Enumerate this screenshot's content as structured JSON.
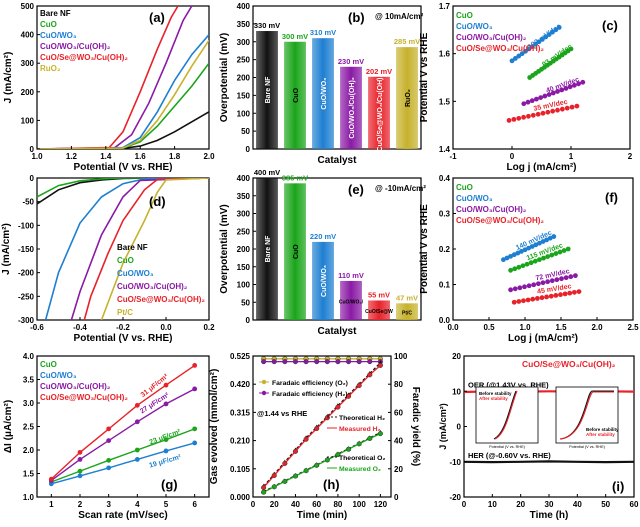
{
  "figure": "electrochemical performance multi-panel",
  "colors": {
    "bare": "#111111",
    "cuo": "#1aa51a",
    "cuowo3": "#1e7fd1",
    "cuowo3cuoh": "#8a1aa5",
    "cse": "#e8222a",
    "ruo2": "#c6b22c",
    "pt": "#c6b22c",
    "text": "#000000"
  },
  "chart_data": [
    {
      "id": "a",
      "type": "line",
      "panel_label": "(a)",
      "xlabel": "Potential (V vs. RHE)",
      "ylabel": "J (mA/cm²)",
      "xlim": [
        1.0,
        2.0
      ],
      "ylim": [
        0,
        500
      ],
      "xticks": [
        "1.0",
        "1.2",
        "1.4",
        "1.6",
        "1.8",
        "2.0"
      ],
      "yticks": [
        "0",
        "100",
        "200",
        "300",
        "400",
        "500"
      ],
      "legend": [
        "Bare NF",
        "CuO",
        "CuO/WO₃",
        "CuO/WO₃/Cu(OH)₂",
        "CuO/Se@WO₃/Cu(OH)₂",
        "RuO₂"
      ],
      "series": [
        {
          "name": "Bare NF",
          "color": "#111111",
          "x": [
            1.0,
            1.5,
            1.6,
            1.7,
            1.8,
            1.9,
            2.0
          ],
          "y": [
            0,
            2,
            10,
            30,
            60,
            95,
            130
          ]
        },
        {
          "name": "CuO",
          "color": "#1aa51a",
          "x": [
            1.0,
            1.5,
            1.6,
            1.7,
            1.8,
            1.9,
            2.0
          ],
          "y": [
            0,
            3,
            25,
            80,
            150,
            220,
            300
          ]
        },
        {
          "name": "CuO/WO₃",
          "color": "#1e7fd1",
          "x": [
            1.0,
            1.5,
            1.6,
            1.7,
            1.8,
            1.9,
            2.0
          ],
          "y": [
            0,
            5,
            40,
            130,
            240,
            330,
            400
          ]
        },
        {
          "name": "CuO/WO₃/Cu(OH)₂",
          "color": "#8a1aa5",
          "x": [
            1.0,
            1.45,
            1.55,
            1.65,
            1.75,
            1.85,
            1.9
          ],
          "y": [
            0,
            4,
            50,
            160,
            300,
            450,
            500
          ]
        },
        {
          "name": "CuO/Se@WO₃/Cu(OH)₂",
          "color": "#e8222a",
          "x": [
            1.0,
            1.42,
            1.5,
            1.6,
            1.7,
            1.78,
            1.82
          ],
          "y": [
            0,
            5,
            60,
            200,
            350,
            460,
            500
          ]
        },
        {
          "name": "RuO₂",
          "color": "#c6b22c",
          "x": [
            1.0,
            1.5,
            1.6,
            1.7,
            1.8,
            1.9,
            2.0
          ],
          "y": [
            0,
            3,
            30,
            100,
            190,
            290,
            380
          ]
        }
      ]
    },
    {
      "id": "b",
      "type": "bar",
      "panel_label": "(b)",
      "note": "@ 10mA/cm²",
      "xlabel": "Catalyst",
      "ylabel": "Overpotential (mV)",
      "ylim": [
        0,
        400
      ],
      "yticks": [
        "0",
        "50",
        "100",
        "150",
        "200",
        "250",
        "300",
        "350",
        "400"
      ],
      "categories": [
        "Bare NF",
        "CuO",
        "CuO/WO₃",
        "CuO/WO₃/Cu(OH)₂",
        "CuO/Se@WO₃/Cu(OH)₂",
        "RuO₂"
      ],
      "values": [
        330,
        300,
        310,
        230,
        202,
        285
      ],
      "value_labels": [
        "330 mV",
        "300 mV",
        "310 mV",
        "230 mV",
        "202 mV",
        "285 mV"
      ],
      "colors": [
        "#111111",
        "#1aa51a",
        "#1e7fd1",
        "#8a1aa5",
        "#e8222a",
        "#c6b22c"
      ]
    },
    {
      "id": "c",
      "type": "line",
      "panel_label": "(c)",
      "xlabel": "Log j (mA/cm²)",
      "ylabel": "Potential V vs RHE",
      "xlim": [
        -1,
        2
      ],
      "ylim": [
        1.4,
        1.7
      ],
      "xticks": [
        "-1",
        "0",
        "1",
        "2"
      ],
      "yticks": [
        "1.4",
        "1.5",
        "1.6",
        "1.7"
      ],
      "legend": [
        "CuO",
        "CuO/WO₃",
        "CuO/WO₃/Cu(OH)₂",
        "CuO/Se@WO₃/Cu(OH)₂"
      ],
      "series": [
        {
          "name": "CuO",
          "color": "#1aa51a",
          "x": [
            0.3,
            1.0
          ],
          "y": [
            1.55,
            1.61
          ],
          "label": "93 mV/dec"
        },
        {
          "name": "CuO/WO₃",
          "color": "#1e7fd1",
          "x": [
            0.0,
            0.8
          ],
          "y": [
            1.585,
            1.655
          ],
          "label": "102 mV/dec"
        },
        {
          "name": "CuO/WO₃/Cu(OH)₂",
          "color": "#8a1aa5",
          "x": [
            0.2,
            1.2
          ],
          "y": [
            1.495,
            1.54
          ],
          "label": "40 mV/dec"
        },
        {
          "name": "CuO/Se@WO₃/Cu(OH)₂",
          "color": "#e8222a",
          "x": [
            -0.05,
            1.1
          ],
          "y": [
            1.46,
            1.49
          ],
          "label": "35 mV/dec"
        }
      ]
    },
    {
      "id": "d",
      "type": "line",
      "panel_label": "(d)",
      "xlabel": "Potential (V vs. RHE)",
      "ylabel": "J (mA/cm²)",
      "xlim": [
        -0.6,
        0.2
      ],
      "ylim": [
        -300,
        0
      ],
      "xticks": [
        "-0.6",
        "-0.4",
        "-0.2",
        "0.0",
        "0.2"
      ],
      "yticks": [
        "0",
        "-50",
        "-100",
        "-150",
        "-200",
        "-250",
        "-300"
      ],
      "legend": [
        "Bare NF",
        "CuO",
        "CuO/WO₃",
        "CuO/WO₃/Cu(OH)₂",
        "CuO/Se@WO₃/Cu(OH)₂",
        "Pt/C"
      ],
      "series": [
        {
          "name": "Bare NF",
          "color": "#111111",
          "x": [
            -0.6,
            -0.5,
            -0.4,
            -0.3,
            -0.2,
            -0.1,
            0.2
          ],
          "y": [
            -55,
            -25,
            -10,
            -4,
            -1,
            0,
            0
          ]
        },
        {
          "name": "CuO",
          "color": "#1aa51a",
          "x": [
            -0.6,
            -0.5,
            -0.4,
            -0.3,
            -0.2,
            -0.1,
            0.2
          ],
          "y": [
            -40,
            -16,
            -6,
            -2,
            0,
            0,
            0
          ]
        },
        {
          "name": "CuO/WO₃",
          "color": "#1e7fd1",
          "x": [
            -0.56,
            -0.5,
            -0.4,
            -0.3,
            -0.2,
            -0.1,
            0.2
          ],
          "y": [
            -300,
            -200,
            -95,
            -40,
            -12,
            -2,
            0
          ]
        },
        {
          "name": "CuO/WO₃/Cu(OH)₂",
          "color": "#8a1aa5",
          "x": [
            -0.44,
            -0.4,
            -0.3,
            -0.2,
            -0.12,
            0.2
          ],
          "y": [
            -300,
            -240,
            -120,
            -40,
            -5,
            0
          ]
        },
        {
          "name": "CuO/Se@WO₃/Cu(OH)₂",
          "color": "#e8222a",
          "x": [
            -0.38,
            -0.35,
            -0.27,
            -0.2,
            -0.1,
            -0.04,
            0.2
          ],
          "y": [
            -300,
            -250,
            -160,
            -90,
            -25,
            -3,
            0
          ]
        },
        {
          "name": "Pt/C",
          "color": "#c6b22c",
          "x": [
            -0.3,
            -0.25,
            -0.2,
            -0.1,
            -0.04,
            0.0,
            0.2
          ],
          "y": [
            -300,
            -240,
            -180,
            -90,
            -30,
            -4,
            0
          ]
        }
      ]
    },
    {
      "id": "e",
      "type": "bar",
      "panel_label": "(e)",
      "note": "@ -10mA/cm²",
      "xlabel": "Catalyst",
      "ylabel": "Overpotential (mV)",
      "ylim": [
        0,
        400
      ],
      "yticks": [
        "0",
        "50",
        "100",
        "150",
        "200",
        "250",
        "300",
        "350",
        "400"
      ],
      "categories": [
        "Bare NF",
        "CuO",
        "CuO/WO₃",
        "CuO/WO₃/Cu(OH)₂",
        "CuO/Se@WO₃/Cu(OH)₂",
        "Pt/C"
      ],
      "values": [
        400,
        385,
        220,
        110,
        55,
        47
      ],
      "value_labels": [
        "400 mV",
        "385 mV",
        "220 mV",
        "110 mV",
        "55 mV",
        "47 mV"
      ],
      "colors": [
        "#111111",
        "#1aa51a",
        "#1e7fd1",
        "#8a1aa5",
        "#e8222a",
        "#c6b22c"
      ]
    },
    {
      "id": "f",
      "type": "line",
      "panel_label": "(f)",
      "xlabel": "Log j (mA/cm²)",
      "ylabel": "Potential V vs RHE",
      "xlim": [
        0.0,
        2.5
      ],
      "ylim": [
        0.0,
        0.4
      ],
      "xticks": [
        "0.0",
        "0.5",
        "1.0",
        "1.5",
        "2.0",
        "2.5"
      ],
      "yticks": [
        "0.0",
        "0.1",
        "0.2",
        "0.3",
        "0.4"
      ],
      "legend": [
        "CuO",
        "CuO/WO₃",
        "CuO/WO₃/Cu(OH)₂",
        "CuO/Se@WO₃/Cu(OH)₂"
      ],
      "series": [
        {
          "name": "CuO",
          "color": "#1aa51a",
          "x": [
            0.8,
            1.6
          ],
          "y": [
            0.14,
            0.2
          ],
          "label": "115 mV/dec"
        },
        {
          "name": "CuO/WO₃",
          "color": "#1e7fd1",
          "x": [
            0.7,
            1.4
          ],
          "y": [
            0.17,
            0.235
          ],
          "label": "140 mV/dec"
        },
        {
          "name": "CuO/WO₃/Cu(OH)₂",
          "color": "#8a1aa5",
          "x": [
            0.8,
            1.7
          ],
          "y": [
            0.085,
            0.125
          ],
          "label": "72 mV/dec"
        },
        {
          "name": "CuO/Se@WO₃/Cu(OH)₂",
          "color": "#e8222a",
          "x": [
            0.85,
            1.75
          ],
          "y": [
            0.05,
            0.08
          ],
          "label": "45 mV/dec"
        }
      ]
    },
    {
      "id": "g",
      "type": "line",
      "panel_label": "(g)",
      "xlabel": "Scan rate (mV/sec)",
      "ylabel": "ΔI (μA/cm²)",
      "xlim": [
        0.5,
        6.5
      ],
      "ylim": [
        1.0,
        4.0
      ],
      "xticks": [
        "1",
        "2",
        "3",
        "4",
        "5",
        "6"
      ],
      "yticks": [
        "1.0",
        "1.5",
        "2.0",
        "2.5",
        "3.0",
        "3.5",
        "4.0"
      ],
      "legend": [
        "CuO",
        "CuO/WO₃",
        "CuO/WO₃/Cu(OH)₂",
        "CuO/Se@WO₃/Cu(OH)₂"
      ],
      "series": [
        {
          "name": "CuO",
          "color": "#1aa51a",
          "x": [
            1,
            2,
            3,
            4,
            5,
            6
          ],
          "y": [
            1.32,
            1.55,
            1.78,
            2.0,
            2.22,
            2.45
          ],
          "label": "23 μF/cm²"
        },
        {
          "name": "CuO/WO₃",
          "color": "#1e7fd1",
          "x": [
            1,
            2,
            3,
            4,
            5,
            6
          ],
          "y": [
            1.28,
            1.45,
            1.62,
            1.8,
            1.98,
            2.15
          ],
          "label": "19 μF/cm²"
        },
        {
          "name": "CuO/WO₃/Cu(OH)₂",
          "color": "#8a1aa5",
          "x": [
            1,
            2,
            3,
            4,
            5,
            6
          ],
          "y": [
            1.35,
            1.8,
            2.2,
            2.6,
            2.98,
            3.3
          ],
          "label": "27 μF/cm²"
        },
        {
          "name": "CuO/Se@WO₃/Cu(OH)₂",
          "color": "#e8222a",
          "x": [
            1,
            2,
            3,
            4,
            5,
            6
          ],
          "y": [
            1.38,
            1.95,
            2.45,
            2.95,
            3.38,
            3.8
          ],
          "label": "31 μF/cm²"
        }
      ]
    },
    {
      "id": "h",
      "type": "line",
      "panel_label": "(h)",
      "note": "@1.44 vs RHE",
      "xlabel": "Time (min)",
      "ylabel": "Gas evolved (mmol/cm²)",
      "y2label": "Faradic yield (%)",
      "xlim": [
        0,
        130
      ],
      "ylim": [
        0,
        0.525
      ],
      "y2lim": [
        0,
        100
      ],
      "xticks": [
        "0",
        "20",
        "40",
        "60",
        "80",
        "100",
        "120"
      ],
      "yticks": [
        "0.000",
        "0.105",
        "0.210",
        "0.315",
        "0.420",
        "0.525"
      ],
      "y2ticks": [
        "0",
        "20",
        "40",
        "60",
        "80",
        "100"
      ],
      "legend": [
        "Faradaic efficiency (O₂)",
        "Faradaic efficiency (H₂)",
        "Theoretical H₂",
        "Measured H₂",
        "Theoretical O₂",
        "Measured O₂"
      ],
      "series": [
        {
          "name": "Faradaic efficiency (O₂)",
          "axis": "y2",
          "color": "#c6b22c",
          "x": [
            10,
            20,
            30,
            40,
            50,
            60,
            70,
            80,
            90,
            100,
            110,
            120
          ],
          "y": [
            98,
            98,
            98,
            98,
            98,
            98,
            98,
            98,
            98,
            98,
            98,
            98
          ]
        },
        {
          "name": "Faradaic efficiency (H₂)",
          "axis": "y2",
          "color": "#8a1aa5",
          "x": [
            10,
            20,
            30,
            40,
            50,
            60,
            70,
            80,
            90,
            100,
            110,
            120
          ],
          "y": [
            96,
            96,
            96,
            96,
            96,
            96,
            96,
            96,
            96,
            96,
            96,
            96
          ]
        },
        {
          "name": "Theoretical H₂",
          "axis": "y",
          "color": "#111111",
          "dash": true,
          "x": [
            10,
            20,
            30,
            40,
            50,
            60,
            70,
            80,
            90,
            100,
            110,
            120
          ],
          "y": [
            0.04,
            0.085,
            0.13,
            0.175,
            0.22,
            0.26,
            0.3,
            0.34,
            0.38,
            0.42,
            0.46,
            0.5
          ]
        },
        {
          "name": "Measured H₂",
          "axis": "y",
          "color": "#e8222a",
          "x": [
            10,
            20,
            30,
            40,
            50,
            60,
            70,
            80,
            90,
            100,
            110,
            120
          ],
          "y": [
            0.035,
            0.08,
            0.125,
            0.17,
            0.215,
            0.255,
            0.295,
            0.335,
            0.375,
            0.415,
            0.455,
            0.49
          ]
        },
        {
          "name": "Theoretical O₂",
          "axis": "y",
          "color": "#111111",
          "dash": true,
          "x": [
            10,
            20,
            30,
            40,
            50,
            60,
            70,
            80,
            90,
            100,
            110,
            120
          ],
          "y": [
            0.02,
            0.04,
            0.06,
            0.08,
            0.1,
            0.12,
            0.14,
            0.16,
            0.18,
            0.2,
            0.22,
            0.24
          ]
        },
        {
          "name": "Measured O₂",
          "axis": "y",
          "color": "#1aa51a",
          "x": [
            10,
            20,
            30,
            40,
            50,
            60,
            70,
            80,
            90,
            100,
            110,
            120
          ],
          "y": [
            0.018,
            0.038,
            0.058,
            0.078,
            0.098,
            0.118,
            0.138,
            0.158,
            0.178,
            0.198,
            0.218,
            0.236
          ]
        }
      ]
    },
    {
      "id": "i",
      "type": "line",
      "panel_label": "(i)",
      "xlabel": "Time (h)",
      "ylabel": "J (mA/cm²)",
      "xlim": [
        0,
        60
      ],
      "ylim": [
        -20,
        20
      ],
      "xticks": [
        "0",
        "10",
        "20",
        "30",
        "40",
        "50",
        "60"
      ],
      "yticks": [
        "-20",
        "-10",
        "0",
        "10",
        "20"
      ],
      "title_series": "CuO/Se@WO₃/Cu(OH)₂",
      "annotations": [
        "OER (@1.43V vs. RHE)",
        "HER (@-0.60V vs. RHE)"
      ],
      "inset_labels": {
        "left_top": "Before stability",
        "left_bottom": "After stability",
        "right_top": "Before stability",
        "right_bottom": "After stability",
        "xlabel": "Potential (V vs. RHE)"
      },
      "series": [
        {
          "name": "OER",
          "color": "#e8222a",
          "x": [
            0,
            10,
            20,
            30,
            40,
            50,
            60
          ],
          "y": [
            9.8,
            10.0,
            9.9,
            10.0,
            9.9,
            10.0,
            9.9
          ]
        },
        {
          "name": "HER",
          "color": "#111111",
          "x": [
            0,
            10,
            20,
            30,
            40,
            50,
            60
          ],
          "y": [
            -10.0,
            -10.1,
            -10.0,
            -9.9,
            -10.0,
            -10.1,
            -10.0
          ]
        }
      ]
    }
  ]
}
